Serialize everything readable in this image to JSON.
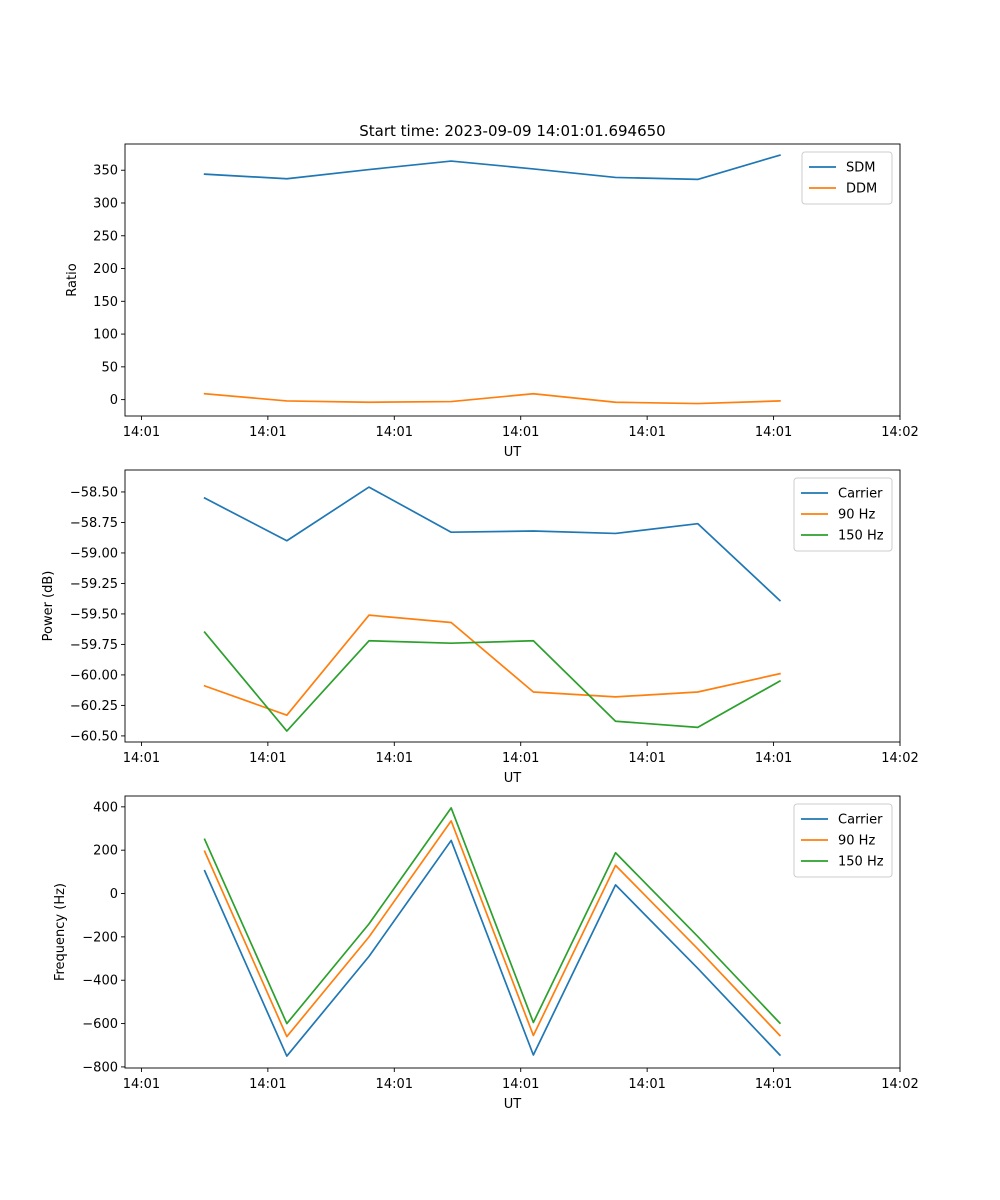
{
  "figure_title": "Start time: 2023-09-09 14:01:01.694650",
  "colors": {
    "blue": "#1f77b4",
    "orange": "#ff7f0e",
    "green": "#2ca02c"
  },
  "chart_data": [
    {
      "type": "line",
      "title": "Start time: 2023-09-09 14:01:01.694650",
      "xlabel": "UT",
      "ylabel": "Ratio",
      "x_ticks": [
        "14:01",
        "14:01",
        "14:01",
        "14:01",
        "14:01",
        "14:01",
        "14:02"
      ],
      "x_tick_positions": [
        0,
        1,
        2,
        3,
        4,
        5,
        6
      ],
      "xlim": [
        -0.13,
        6.0
      ],
      "x": [
        0.5,
        1.15,
        1.8,
        2.45,
        3.1,
        3.75,
        4.4,
        5.05
      ],
      "ylim": [
        -25,
        390
      ],
      "y_ticks": [
        0,
        50,
        100,
        150,
        200,
        250,
        300,
        350
      ],
      "legend_position": "upper right",
      "series": [
        {
          "name": "SDM",
          "color": "#1f77b4",
          "values": [
            344,
            337,
            351,
            364,
            352,
            339,
            336,
            373
          ]
        },
        {
          "name": "DDM",
          "color": "#ff7f0e",
          "values": [
            9,
            -2,
            -4,
            -3,
            9,
            -4,
            -6,
            -2
          ]
        }
      ]
    },
    {
      "type": "line",
      "title": "",
      "xlabel": "UT",
      "ylabel": "Power (dB)",
      "x_ticks": [
        "14:01",
        "14:01",
        "14:01",
        "14:01",
        "14:01",
        "14:01",
        "14:02"
      ],
      "x_tick_positions": [
        0,
        1,
        2,
        3,
        4,
        5,
        6
      ],
      "xlim": [
        -0.13,
        6.0
      ],
      "x": [
        0.5,
        1.15,
        1.8,
        2.45,
        3.1,
        3.75,
        4.4,
        5.05
      ],
      "ylim": [
        -60.55,
        -58.32
      ],
      "y_ticks": [
        -60.5,
        -60.25,
        -60.0,
        -59.75,
        -59.5,
        -59.25,
        -59.0,
        -58.75,
        -58.5
      ],
      "y_tick_labels": [
        "−60.50",
        "−60.25",
        "−60.00",
        "−59.75",
        "−59.50",
        "−59.25",
        "−59.00",
        "−58.75",
        "−58.50"
      ],
      "legend_position": "upper right",
      "series": [
        {
          "name": "Carrier",
          "color": "#1f77b4",
          "values": [
            -58.55,
            -58.9,
            -58.46,
            -58.83,
            -58.82,
            -58.84,
            -58.76,
            -59.39
          ]
        },
        {
          "name": "90 Hz",
          "color": "#ff7f0e",
          "values": [
            -60.09,
            -60.33,
            -59.51,
            -59.57,
            -60.14,
            -60.18,
            -60.14,
            -59.99
          ]
        },
        {
          "name": "150 Hz",
          "color": "#2ca02c",
          "values": [
            -59.65,
            -60.46,
            -59.72,
            -59.74,
            -59.72,
            -60.38,
            -60.43,
            -60.05
          ]
        }
      ]
    },
    {
      "type": "line",
      "title": "",
      "xlabel": "UT",
      "ylabel": "Frequency (Hz)",
      "x_ticks": [
        "14:01",
        "14:01",
        "14:01",
        "14:01",
        "14:01",
        "14:01",
        "14:02"
      ],
      "x_tick_positions": [
        0,
        1,
        2,
        3,
        4,
        5,
        6
      ],
      "xlim": [
        -0.13,
        6.0
      ],
      "x": [
        0.5,
        1.15,
        1.8,
        2.45,
        3.1,
        3.75,
        4.4,
        5.05
      ],
      "ylim": [
        -805,
        450
      ],
      "y_ticks": [
        -800,
        -600,
        -400,
        -200,
        0,
        200,
        400
      ],
      "y_tick_labels": [
        "−800",
        "−600",
        "−400",
        "−200",
        "0",
        "200",
        "400"
      ],
      "legend_position": "upper right",
      "series": [
        {
          "name": "Carrier",
          "color": "#1f77b4",
          "values": [
            105,
            -750,
            -290,
            245,
            -745,
            40,
            -345,
            -745
          ]
        },
        {
          "name": "90 Hz",
          "color": "#ff7f0e",
          "values": [
            195,
            -660,
            -200,
            335,
            -655,
            130,
            -255,
            -655
          ]
        },
        {
          "name": "150 Hz",
          "color": "#2ca02c",
          "values": [
            250,
            -600,
            -140,
            395,
            -595,
            188,
            -198,
            -598
          ]
        }
      ]
    }
  ]
}
